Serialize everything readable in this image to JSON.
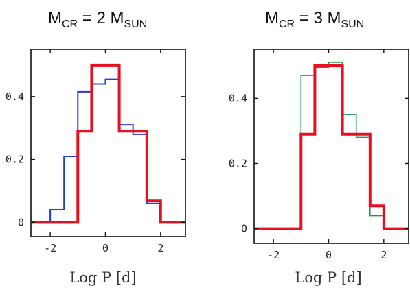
{
  "chart_data": [
    {
      "type": "step",
      "title": {
        "main": "M",
        "sub1": "CR",
        "mid": " = 2 M",
        "sub2": "SUN"
      },
      "xlabel": "Log P [d]",
      "ylabel": "",
      "xlim": [
        -2.7,
        2.9
      ],
      "ylim": [
        -0.045,
        0.55
      ],
      "xticks": [
        -2,
        0,
        2
      ],
      "xtick_labels": [
        "-2",
        "0",
        "2"
      ],
      "yticks": [
        0,
        0.2,
        0.4
      ],
      "ytick_labels": [
        "0",
        "0.2",
        "0.4"
      ],
      "grid": false,
      "legend": "none",
      "series": [
        {
          "color": "#1f3fd0",
          "bins": [
            -2.0,
            -1.5,
            -1.0,
            -0.5,
            0.0,
            0.5,
            1.0,
            1.5,
            2.0
          ],
          "values": [
            0.04,
            0.21,
            0.415,
            0.44,
            0.455,
            0.31,
            0.28,
            0.06
          ],
          "extend_left": -2.7,
          "extend_right": 2.9
        },
        {
          "color": "#e81020",
          "bins": [
            -1.0,
            -0.5,
            0.5,
            1.5,
            2.0
          ],
          "values": [
            0.29,
            0.5,
            0.29,
            0.07
          ],
          "extend_left": -2.7,
          "extend_right": 2.9
        }
      ]
    },
    {
      "type": "step",
      "title": {
        "main": "M",
        "sub1": "CR",
        "mid": " = 3 M",
        "sub2": "SUN"
      },
      "xlabel": "Log P [d]",
      "ylabel": "",
      "xlim": [
        -2.7,
        2.9
      ],
      "ylim": [
        -0.045,
        0.55
      ],
      "xticks": [
        -2,
        0,
        2
      ],
      "xtick_labels": [
        "-2",
        "0",
        "2"
      ],
      "yticks": [
        0,
        0.2,
        0.4
      ],
      "ytick_labels": [
        "0",
        "0.2",
        "0.4"
      ],
      "grid": false,
      "legend": "none",
      "series": [
        {
          "color": "#1a9a55",
          "bins": [
            -1.0,
            -0.5,
            0.0,
            0.5,
            1.0,
            1.5,
            2.0
          ],
          "values": [
            0.47,
            0.495,
            0.51,
            0.35,
            0.28,
            0.04
          ],
          "extend_left": -1.0,
          "extend_right": 2.0
        },
        {
          "color": "#e81020",
          "bins": [
            -1.0,
            -0.5,
            0.5,
            1.5,
            2.0
          ],
          "values": [
            0.29,
            0.5,
            0.29,
            0.07
          ],
          "extend_left": -2.7,
          "extend_right": 2.9
        }
      ]
    }
  ]
}
